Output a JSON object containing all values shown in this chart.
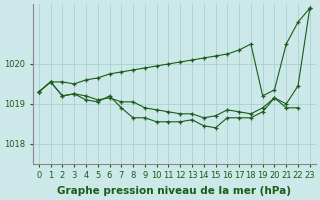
{
  "title": "Graphe pression niveau de la mer (hPa)",
  "bg_color": "#cce8e8",
  "grid_color": "#9fcfcf",
  "line_color": "#1a5c1a",
  "xlim": [
    -0.5,
    23.5
  ],
  "ylim": [
    1017.5,
    1021.5
  ],
  "yticks": [
    1018,
    1019,
    1020
  ],
  "xticks": [
    0,
    1,
    2,
    3,
    4,
    5,
    6,
    7,
    8,
    9,
    10,
    11,
    12,
    13,
    14,
    15,
    16,
    17,
    18,
    19,
    20,
    21,
    22,
    23
  ],
  "line_upper": [
    1019.3,
    1019.55,
    1019.55,
    1019.5,
    1019.6,
    1019.65,
    1019.75,
    1019.8,
    1019.85,
    1019.9,
    1019.95,
    1020.0,
    1020.05,
    1020.1,
    1020.15,
    1020.2,
    1020.25,
    1020.35,
    1020.5,
    1019.2,
    1019.35,
    1020.5,
    1021.05,
    1021.4
  ],
  "line_mid": [
    1019.3,
    1019.55,
    1019.2,
    1019.25,
    1019.2,
    1019.1,
    1019.15,
    1019.05,
    1019.05,
    1018.9,
    1018.85,
    1018.8,
    1018.75,
    1018.75,
    1018.65,
    1018.7,
    1018.85,
    1018.8,
    1018.75,
    1018.9,
    1019.15,
    1019.0,
    1019.45,
    1021.4
  ],
  "line_lower": [
    1019.3,
    1019.55,
    1019.2,
    1019.25,
    1019.1,
    1019.05,
    1019.2,
    1018.9,
    1018.65,
    1018.65,
    1018.55,
    1018.55,
    1018.55,
    1018.6,
    1018.45,
    1018.4,
    1018.65,
    1018.65,
    1018.65,
    1018.8,
    1019.15,
    1018.9,
    1018.9,
    null
  ],
  "tick_fontsize": 6,
  "label_fontsize": 7.5
}
